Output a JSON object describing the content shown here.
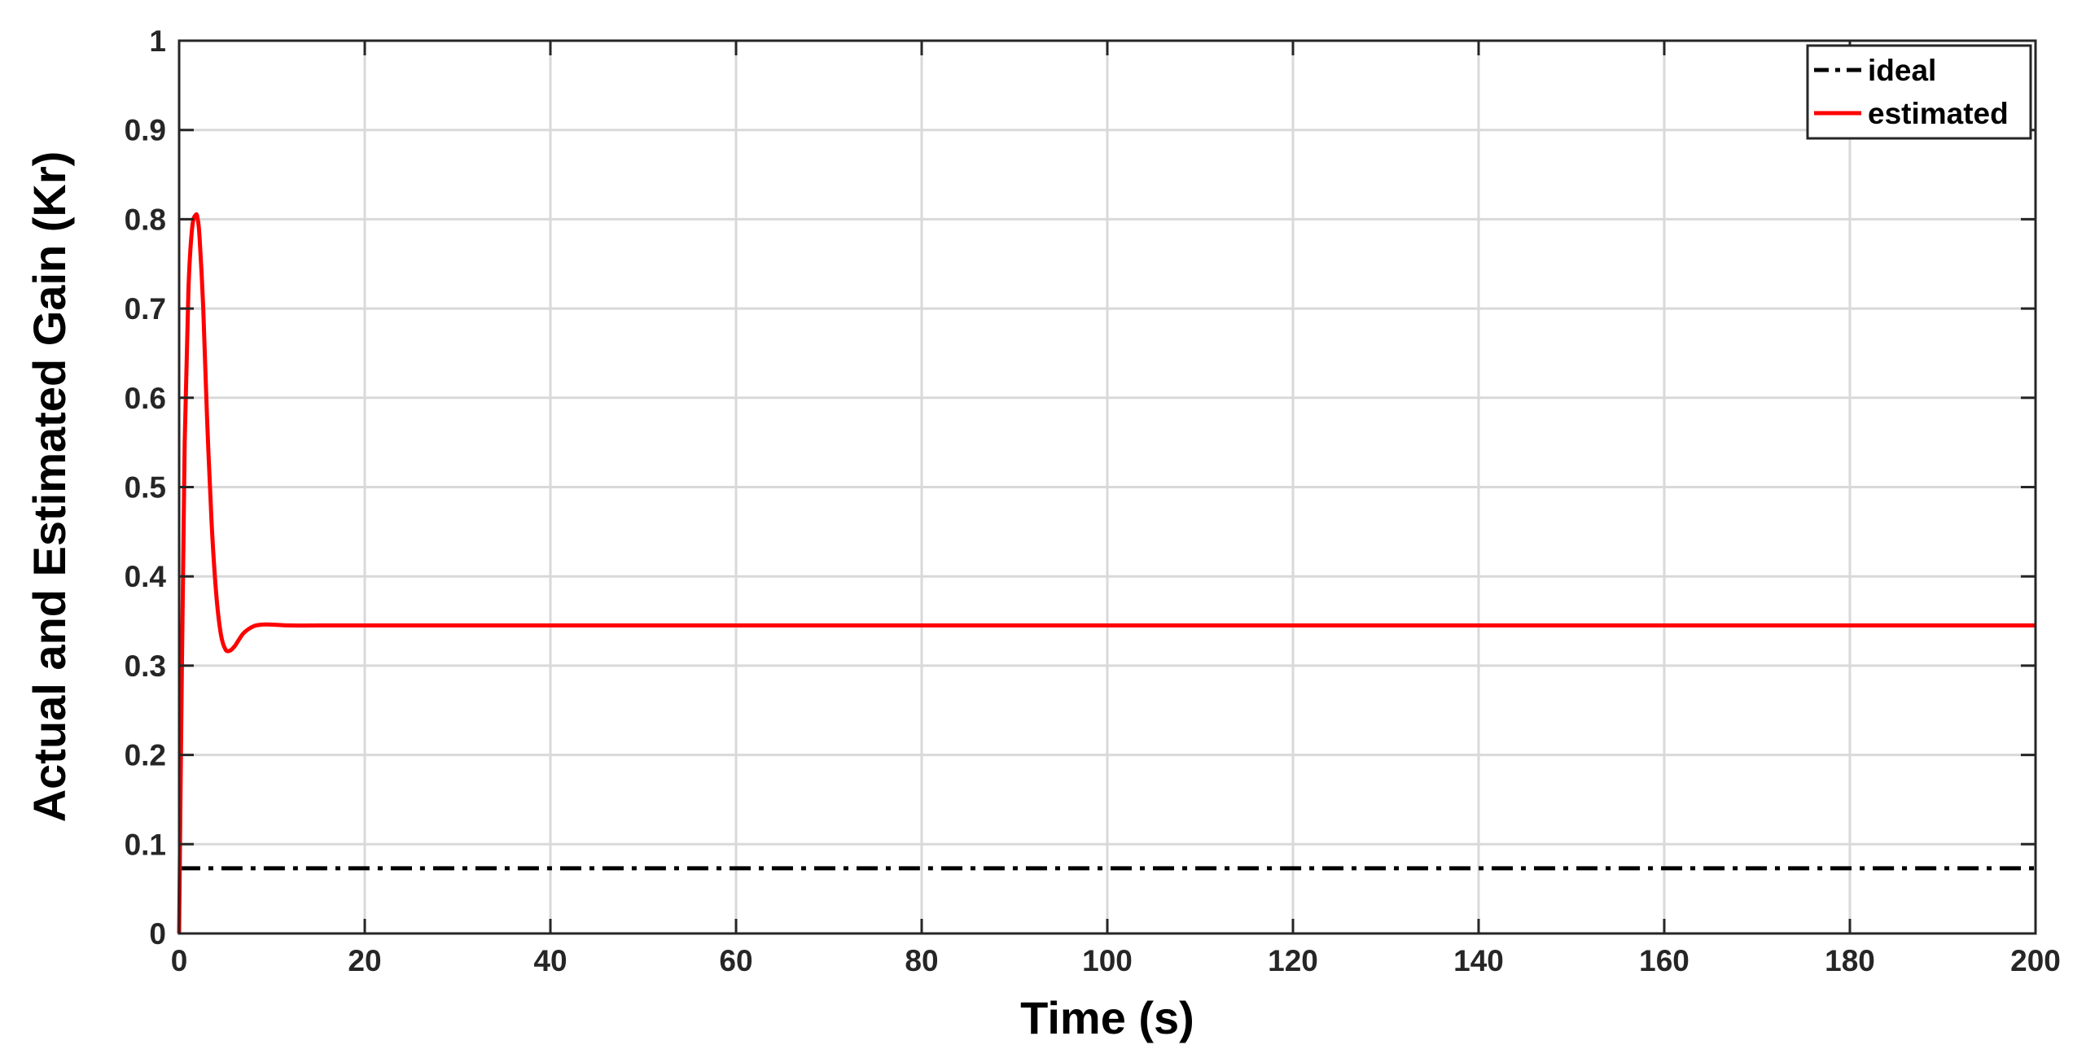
{
  "chart_data": {
    "type": "line",
    "xlabel": "Time (s)",
    "ylabel": "Actual and Estimated Gain (Kr)",
    "xlim": [
      0,
      200
    ],
    "ylim": [
      0,
      1
    ],
    "xticks": [
      "0",
      "20",
      "40",
      "60",
      "80",
      "100",
      "120",
      "140",
      "160",
      "180",
      "200"
    ],
    "yticks": [
      "0",
      "0.1",
      "0.2",
      "0.3",
      "0.4",
      "0.5",
      "0.6",
      "0.7",
      "0.8",
      "0.9",
      "1"
    ],
    "grid": true,
    "legend_position": "top-right",
    "series": [
      {
        "name": "ideal",
        "style": "dash-dot",
        "color": "#000000",
        "x": [
          0,
          200
        ],
        "y": [
          0.073,
          0.073
        ]
      },
      {
        "name": "estimated",
        "style": "solid",
        "color": "#ff0000",
        "x": [
          0,
          0.3,
          0.6,
          1.0,
          1.4,
          1.8,
          2.0,
          2.2,
          2.6,
          3.0,
          3.5,
          4.0,
          4.5,
          5.0,
          5.5,
          6.0,
          6.5,
          7.0,
          8.0,
          9.0,
          10.0,
          12.0,
          15.0,
          20.0,
          50.0,
          100.0,
          150.0,
          200.0
        ],
        "y": [
          0,
          0.3,
          0.55,
          0.72,
          0.79,
          0.805,
          0.8,
          0.78,
          0.7,
          0.58,
          0.46,
          0.38,
          0.335,
          0.318,
          0.317,
          0.322,
          0.33,
          0.337,
          0.344,
          0.346,
          0.346,
          0.345,
          0.345,
          0.345,
          0.345,
          0.345,
          0.345,
          0.345
        ]
      }
    ]
  }
}
